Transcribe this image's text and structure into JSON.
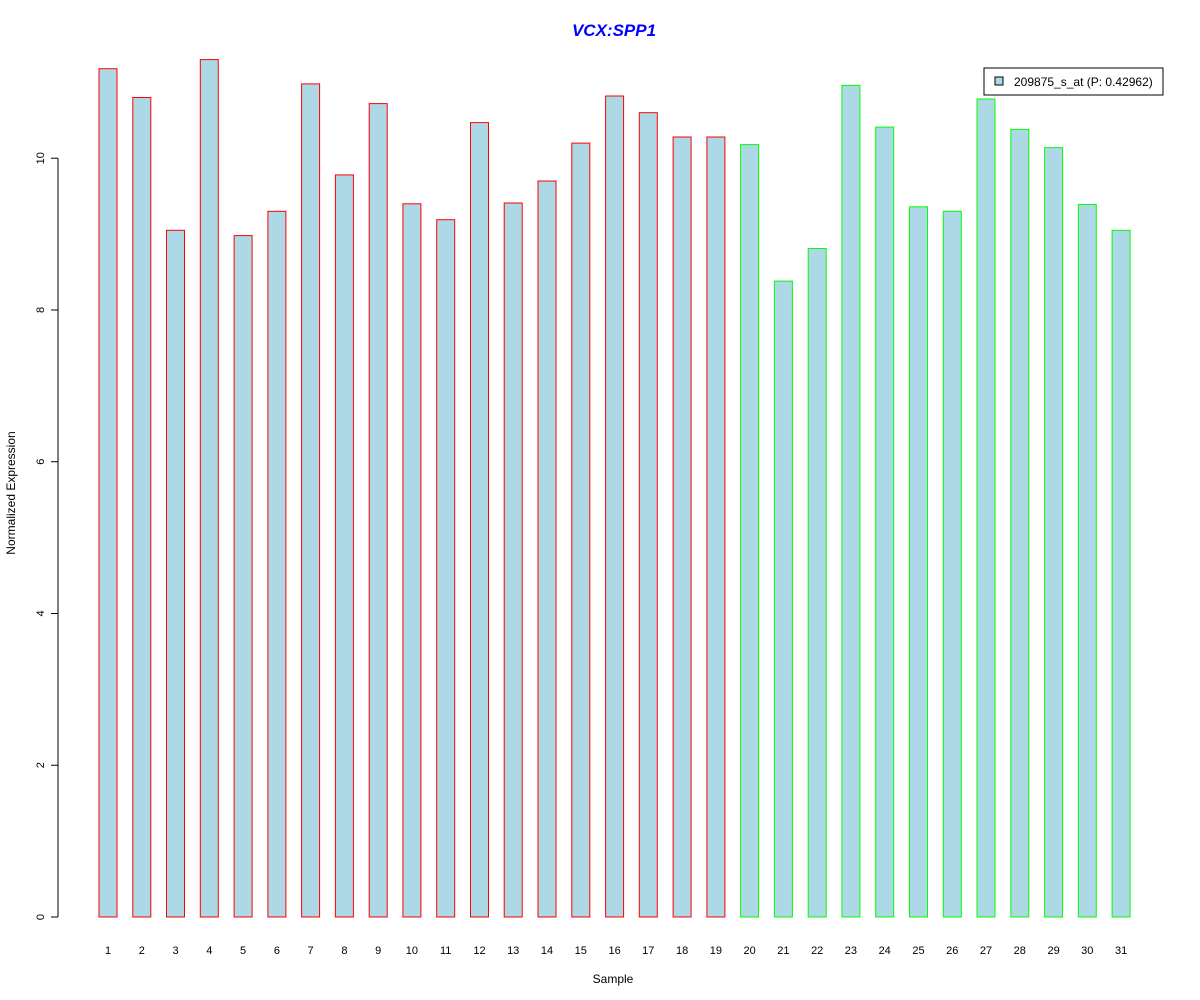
{
  "chart_data": {
    "type": "bar",
    "title": "VCX:SPP1",
    "xlabel": "Sample",
    "ylabel": "Normalized Expression",
    "ylim": [
      0,
      11.4
    ],
    "yticks": [
      "0",
      "2",
      "4",
      "6",
      "8",
      "10"
    ],
    "categories": [
      "1",
      "2",
      "3",
      "4",
      "5",
      "6",
      "7",
      "8",
      "9",
      "10",
      "11",
      "12",
      "13",
      "14",
      "15",
      "16",
      "17",
      "18",
      "19",
      "20",
      "21",
      "22",
      "23",
      "24",
      "25",
      "26",
      "27",
      "28",
      "29",
      "30",
      "31"
    ],
    "values": [
      11.18,
      10.8,
      9.05,
      11.3,
      8.98,
      9.3,
      10.98,
      9.78,
      10.72,
      9.4,
      9.19,
      10.47,
      9.41,
      9.7,
      10.2,
      10.82,
      10.6,
      10.28,
      10.28,
      10.18,
      8.38,
      8.81,
      10.96,
      10.41,
      9.36,
      9.3,
      10.78,
      10.38,
      10.14,
      9.39,
      9.05
    ],
    "groups": [
      "red",
      "red",
      "red",
      "red",
      "red",
      "red",
      "red",
      "red",
      "red",
      "red",
      "red",
      "red",
      "red",
      "red",
      "red",
      "red",
      "red",
      "red",
      "red",
      "green",
      "green",
      "green",
      "green",
      "green",
      "green",
      "green",
      "green",
      "green",
      "green",
      "green",
      "green"
    ],
    "legend": {
      "label": "209875_s_at (P: 0.42962)",
      "position": "top-right"
    },
    "grid": false,
    "colors": {
      "fill": "#add8e6",
      "red": "#ff0000",
      "green": "#00ff00",
      "title": "#0000ff"
    }
  }
}
